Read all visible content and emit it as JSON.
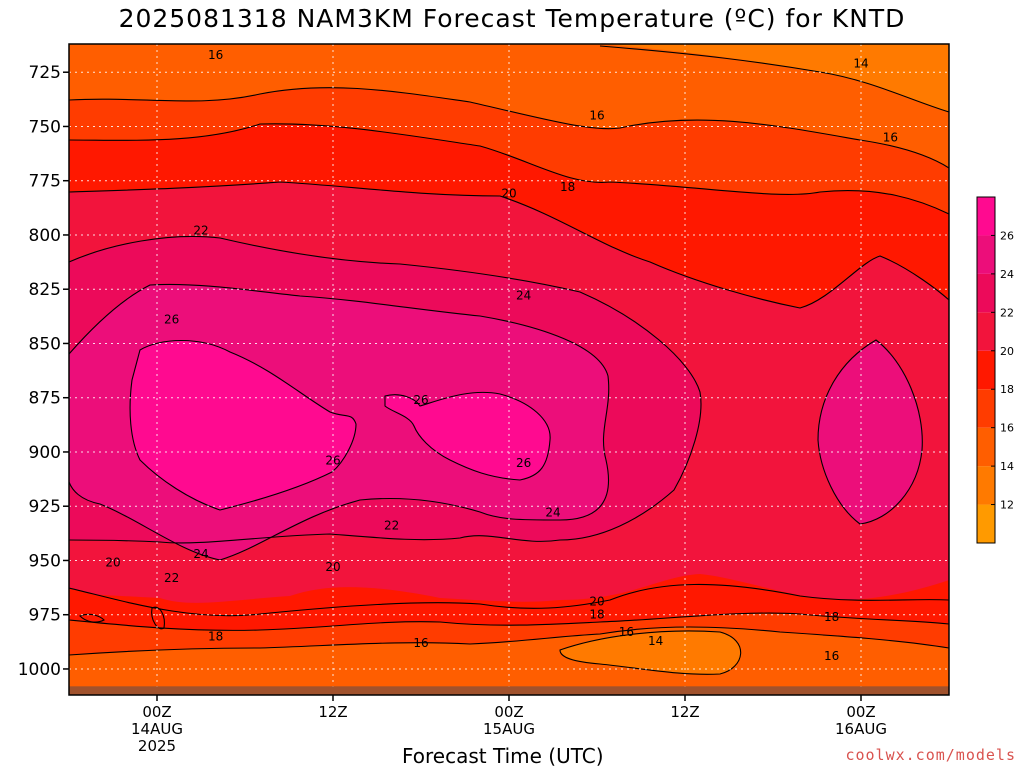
{
  "chart_data": {
    "type": "heatmap",
    "title": "2025081318 NAM3KM Forecast Temperature (ºC) for KNTD",
    "xlabel": "Forecast Time (UTC)",
    "ylabel": "",
    "credit": "coolwx.com/models",
    "y_axis": {
      "quantity": "pressure (hPa)",
      "reversed": true,
      "range": [
        712,
        1012
      ],
      "ticks": [
        725,
        750,
        775,
        800,
        825,
        850,
        875,
        900,
        925,
        950,
        975,
        1000
      ]
    },
    "x_axis": {
      "quantity": "forecast valid time (UTC)",
      "range": [
        "2025-08-13T18Z",
        "2025-08-16T06Z"
      ],
      "ticks": [
        {
          "time": "2025-08-14T00Z",
          "lines": [
            "00Z",
            "14AUG",
            "2025"
          ]
        },
        {
          "time": "2025-08-14T12Z",
          "lines": [
            "12Z"
          ]
        },
        {
          "time": "2025-08-15T00Z",
          "lines": [
            "00Z",
            "15AUG"
          ]
        },
        {
          "time": "2025-08-15T12Z",
          "lines": [
            "12Z"
          ]
        },
        {
          "time": "2025-08-16T00Z",
          "lines": [
            "00Z",
            "16AUG"
          ]
        }
      ]
    },
    "grid": true,
    "colorbar": {
      "placement": "right",
      "bounds": [
        10,
        12,
        14,
        16,
        18,
        20,
        22,
        24,
        26,
        28
      ],
      "tick_labels": [
        12,
        14,
        16,
        18,
        20,
        22,
        24,
        26
      ],
      "colors": [
        "#ff9a00",
        "#ff7a00",
        "#ff5e00",
        "#ff3c00",
        "#ff1800",
        "#f2143c",
        "#ec0a5a",
        "#ec0e7a",
        "#ff0a90"
      ]
    },
    "contour_levels": [
      14,
      16,
      18,
      20,
      22,
      24,
      26
    ],
    "contour_labels": [
      {
        "time": "2025-08-14T04Z",
        "p": 717,
        "value": "16"
      },
      {
        "time": "2025-08-16T00Z",
        "p": 721,
        "value": "14"
      },
      {
        "time": "2025-08-15T06Z",
        "p": 745,
        "value": "16"
      },
      {
        "time": "2025-08-16T02Z",
        "p": 755,
        "value": "16"
      },
      {
        "time": "2025-08-15T04Z",
        "p": 778,
        "value": "18"
      },
      {
        "time": "2025-08-15T00Z",
        "p": 781,
        "value": "20"
      },
      {
        "time": "2025-08-14T03Z",
        "p": 798,
        "value": "22"
      },
      {
        "time": "2025-08-15T01Z",
        "p": 828,
        "value": "24"
      },
      {
        "time": "2025-08-14T01Z",
        "p": 839,
        "value": "26"
      },
      {
        "time": "2025-08-14T18Z",
        "p": 876,
        "value": "26"
      },
      {
        "time": "2025-08-14T12Z",
        "p": 904,
        "value": "26"
      },
      {
        "time": "2025-08-15T01Z",
        "p": 905,
        "value": "26"
      },
      {
        "time": "2025-08-15T03Z",
        "p": 928,
        "value": "24"
      },
      {
        "time": "2025-08-14T03Z",
        "p": 947,
        "value": "24"
      },
      {
        "time": "2025-08-14T16Z",
        "p": 934,
        "value": "22"
      },
      {
        "time": "2025-08-13T21Z",
        "p": 951,
        "value": "20"
      },
      {
        "time": "2025-08-14T01Z",
        "p": 958,
        "value": "22"
      },
      {
        "time": "2025-08-14T12Z",
        "p": 953,
        "value": "20"
      },
      {
        "time": "2025-08-15T06Z",
        "p": 969,
        "value": "20"
      },
      {
        "time": "2025-08-15T06Z",
        "p": 975,
        "value": "18"
      },
      {
        "time": "2025-08-15T22Z",
        "p": 976,
        "value": "18"
      },
      {
        "time": "2025-08-14T04Z",
        "p": 985,
        "value": "18"
      },
      {
        "time": "2025-08-14T18Z",
        "p": 988,
        "value": "16"
      },
      {
        "time": "2025-08-15T08Z",
        "p": 983,
        "value": "16"
      },
      {
        "time": "2025-08-15T10Z",
        "p": 987,
        "value": "14"
      },
      {
        "time": "2025-08-15T22Z",
        "p": 994,
        "value": "16"
      }
    ],
    "surface": {
      "p": 1008,
      "color": "#a0522d"
    }
  }
}
